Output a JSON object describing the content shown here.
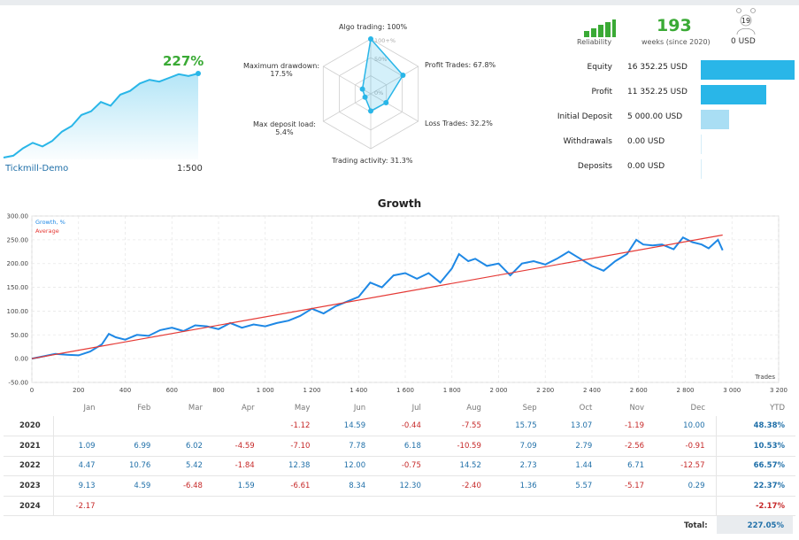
{
  "summary": {
    "gain_pct": "227%",
    "account": "Tickmill-Demo",
    "leverage": "1:500"
  },
  "radar": {
    "axes": [
      {
        "label": "Algo trading: 100%",
        "value": 100
      },
      {
        "label": "Profit Trades: 67.8%",
        "value": 67.8
      },
      {
        "label": "Loss Trades: 32.2%",
        "value": 32.2
      },
      {
        "label": "Trading activity: 31.3%",
        "value": 31.3
      },
      {
        "label": "Max deposit load:",
        "sub": "5.4%",
        "value": 5.4
      },
      {
        "label": "Maximum drawdown:",
        "sub": "17.5%",
        "value": 17.5
      }
    ],
    "rings": [
      "100+%",
      "50%",
      "0%"
    ]
  },
  "stats": {
    "reliability_label": "Reliability",
    "weeks": "193",
    "weeks_label": "weeks (since 2020)",
    "subscribers": "19",
    "subscribers_value": "0 USD"
  },
  "balances": [
    {
      "label": "Equity",
      "value": "16 352.25 USD",
      "amount": 16352.25,
      "color": "#29b6e8"
    },
    {
      "label": "Profit",
      "value": "11 352.25 USD",
      "amount": 11352.25,
      "color": "#29b6e8"
    },
    {
      "label": "Initial Deposit",
      "value": "5 000.00 USD",
      "amount": 5000,
      "color": "#a9def4"
    },
    {
      "label": "Withdrawals",
      "value": "0.00 USD",
      "amount": 0,
      "color": "#a9def4"
    },
    {
      "label": "Deposits",
      "value": "0.00 USD",
      "amount": 0,
      "color": "#a9def4"
    }
  ],
  "chart_data": {
    "type": "line",
    "title": "Growth",
    "xlabel": "Trades",
    "ylabel": "",
    "xlim": [
      0,
      3200
    ],
    "ylim": [
      -50,
      300
    ],
    "x_ticks": [
      "0",
      "200",
      "400",
      "600",
      "800",
      "1 000",
      "1 200",
      "1 400",
      "1 600",
      "1 800",
      "2 000",
      "2 200",
      "2 400",
      "2 600",
      "2 800",
      "3 000",
      "3 200"
    ],
    "y_ticks": [
      "300.00",
      "250.00",
      "200.00",
      "150.00",
      "100.00",
      "50.00",
      "0.00",
      "-50.00"
    ],
    "legend": "top-left",
    "grid": true,
    "series": [
      {
        "name": "Growth, %",
        "color": "#1e88e5",
        "points": [
          [
            0,
            0
          ],
          [
            50,
            5
          ],
          [
            100,
            10
          ],
          [
            150,
            8
          ],
          [
            200,
            7
          ],
          [
            250,
            15
          ],
          [
            300,
            30
          ],
          [
            330,
            52
          ],
          [
            360,
            45
          ],
          [
            400,
            40
          ],
          [
            450,
            50
          ],
          [
            500,
            48
          ],
          [
            550,
            60
          ],
          [
            600,
            65
          ],
          [
            650,
            58
          ],
          [
            700,
            70
          ],
          [
            750,
            68
          ],
          [
            800,
            62
          ],
          [
            850,
            75
          ],
          [
            900,
            65
          ],
          [
            950,
            72
          ],
          [
            1000,
            68
          ],
          [
            1050,
            75
          ],
          [
            1100,
            80
          ],
          [
            1150,
            90
          ],
          [
            1200,
            105
          ],
          [
            1250,
            95
          ],
          [
            1300,
            110
          ],
          [
            1350,
            120
          ],
          [
            1400,
            130
          ],
          [
            1450,
            160
          ],
          [
            1500,
            150
          ],
          [
            1550,
            175
          ],
          [
            1600,
            180
          ],
          [
            1650,
            168
          ],
          [
            1700,
            180
          ],
          [
            1750,
            160
          ],
          [
            1800,
            190
          ],
          [
            1830,
            220
          ],
          [
            1870,
            205
          ],
          [
            1900,
            210
          ],
          [
            1950,
            195
          ],
          [
            2000,
            200
          ],
          [
            2050,
            175
          ],
          [
            2100,
            200
          ],
          [
            2150,
            205
          ],
          [
            2200,
            198
          ],
          [
            2250,
            210
          ],
          [
            2300,
            225
          ],
          [
            2350,
            210
          ],
          [
            2400,
            195
          ],
          [
            2450,
            185
          ],
          [
            2500,
            205
          ],
          [
            2550,
            220
          ],
          [
            2590,
            250
          ],
          [
            2620,
            240
          ],
          [
            2660,
            238
          ],
          [
            2700,
            240
          ],
          [
            2750,
            230
          ],
          [
            2790,
            255
          ],
          [
            2830,
            245
          ],
          [
            2870,
            240
          ],
          [
            2900,
            232
          ],
          [
            2940,
            250
          ],
          [
            2960,
            228
          ]
        ]
      },
      {
        "name": "Average",
        "color": "#e53935",
        "points": [
          [
            0,
            0
          ],
          [
            2960,
            260
          ]
        ]
      }
    ],
    "mini_series": [
      [
        0,
        0
      ],
      [
        10,
        5
      ],
      [
        20,
        25
      ],
      [
        30,
        40
      ],
      [
        40,
        30
      ],
      [
        50,
        45
      ],
      [
        60,
        70
      ],
      [
        70,
        85
      ],
      [
        80,
        115
      ],
      [
        90,
        125
      ],
      [
        100,
        150
      ],
      [
        110,
        140
      ],
      [
        120,
        170
      ],
      [
        130,
        180
      ],
      [
        140,
        200
      ],
      [
        150,
        210
      ],
      [
        160,
        205
      ],
      [
        170,
        215
      ],
      [
        180,
        225
      ],
      [
        190,
        220
      ],
      [
        200,
        227
      ]
    ]
  },
  "table": {
    "headers": [
      "",
      "Jan",
      "Feb",
      "Mar",
      "Apr",
      "May",
      "Jun",
      "Jul",
      "Aug",
      "Sep",
      "Oct",
      "Nov",
      "Dec",
      "YTD"
    ],
    "rows": [
      {
        "year": "2020",
        "cells": [
          "",
          "",
          "",
          "",
          "-1.12",
          "14.59",
          "-0.44",
          "-7.55",
          "15.75",
          "13.07",
          "-1.19",
          "10.00"
        ],
        "ytd": "48.38%"
      },
      {
        "year": "2021",
        "cells": [
          "1.09",
          "6.99",
          "6.02",
          "-4.59",
          "-7.10",
          "7.78",
          "6.18",
          "-10.59",
          "7.09",
          "2.79",
          "-2.56",
          "-0.91"
        ],
        "ytd": "10.53%"
      },
      {
        "year": "2022",
        "cells": [
          "4.47",
          "10.76",
          "5.42",
          "-1.84",
          "12.38",
          "12.00",
          "-0.75",
          "14.52",
          "2.73",
          "1.44",
          "6.71",
          "-12.57"
        ],
        "ytd": "66.57%"
      },
      {
        "year": "2023",
        "cells": [
          "9.13",
          "4.59",
          "-6.48",
          "1.59",
          "-6.61",
          "8.34",
          "12.30",
          "-2.40",
          "1.36",
          "5.57",
          "-5.17",
          "0.29"
        ],
        "ytd": "22.37%"
      },
      {
        "year": "2024",
        "cells": [
          "-2.17",
          "",
          "",
          "",
          "",
          "",
          "",
          "",
          "",
          "",
          "",
          ""
        ],
        "ytd": "-2.17%"
      }
    ],
    "total_label": "Total:",
    "total_value": "227.05%"
  }
}
